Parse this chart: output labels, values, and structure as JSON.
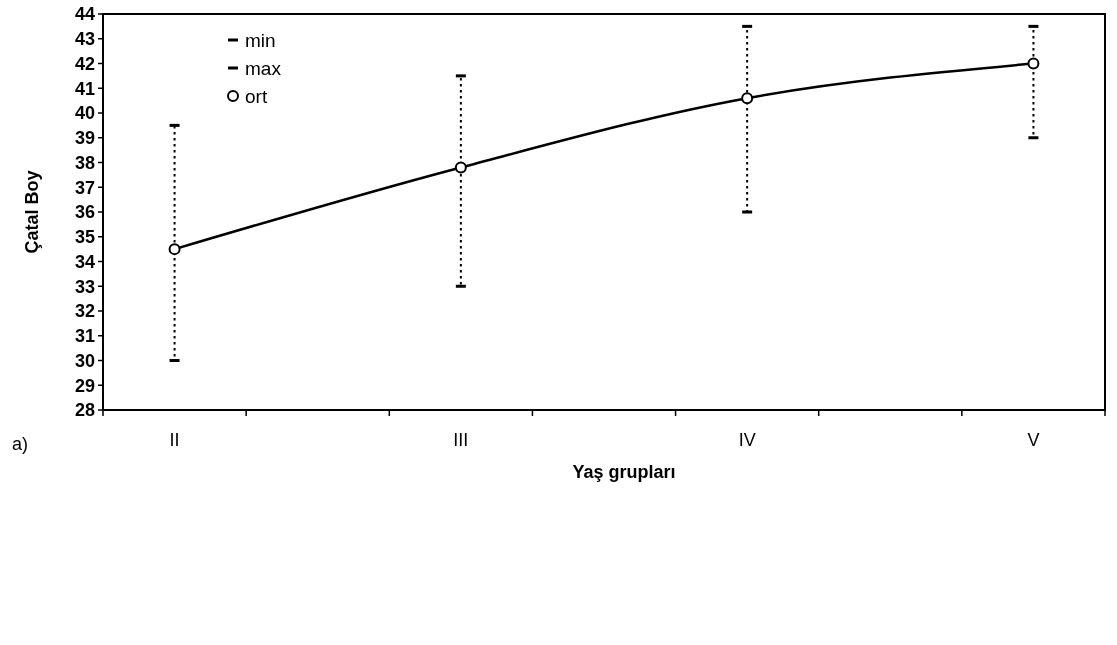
{
  "chart_data": {
    "type": "line",
    "xlabel": "Yaş grupları",
    "ylabel": "Çatal Boy",
    "annotations": [
      "a)"
    ],
    "categories": [
      "II",
      "III",
      "IV",
      "V"
    ],
    "ylim": [
      28,
      44
    ],
    "yticks": [
      28,
      29,
      30,
      31,
      32,
      33,
      34,
      35,
      36,
      37,
      38,
      39,
      40,
      41,
      42,
      43,
      44
    ],
    "grid": false,
    "legend": "top left",
    "series": [
      {
        "name": "min",
        "type": "scatter",
        "marker": "square",
        "color": "#000000",
        "values": [
          30,
          33,
          36,
          39
        ]
      },
      {
        "name": "max",
        "type": "scatter",
        "marker": "square",
        "color": "#000000",
        "values": [
          39.5,
          41.5,
          43.5,
          43.5
        ]
      },
      {
        "name": "ort",
        "type": "line",
        "marker": "circle",
        "color": "#000000",
        "values": [
          34.5,
          37.8,
          40.6,
          42
        ]
      }
    ]
  }
}
